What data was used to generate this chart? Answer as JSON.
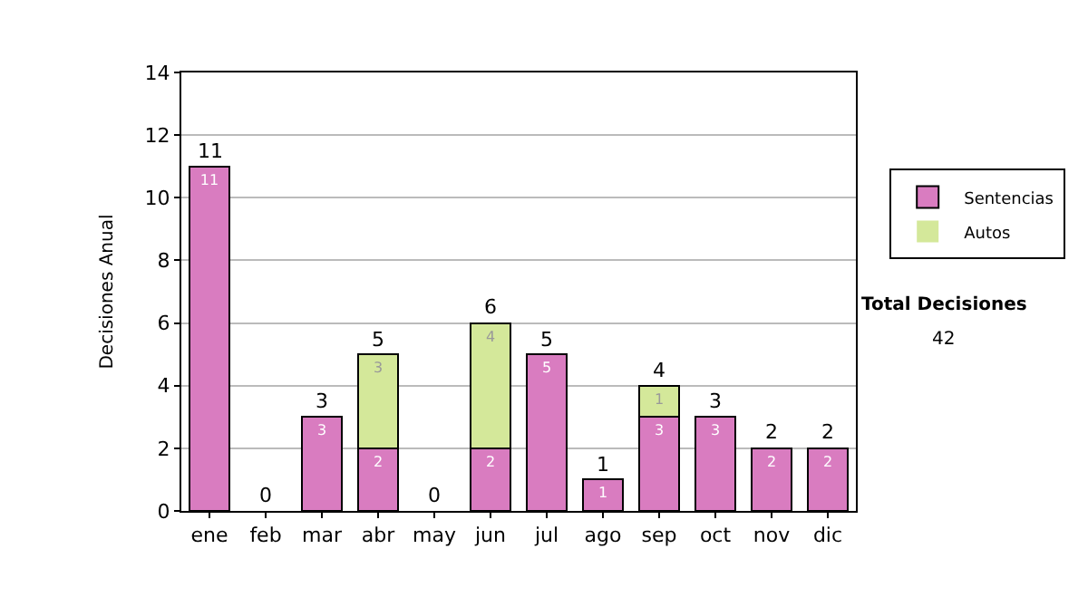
{
  "chart_data": {
    "type": "bar",
    "ylabel": "Decisiones Anual",
    "categories": [
      "ene",
      "feb",
      "mar",
      "abr",
      "may",
      "jun",
      "jul",
      "ago",
      "sep",
      "oct",
      "nov",
      "dic"
    ],
    "stacked": true,
    "ylim": [
      0,
      14
    ],
    "yticks": [
      0,
      2,
      4,
      6,
      8,
      10,
      12,
      14
    ],
    "grid": "y",
    "legend": "right",
    "series": [
      {
        "name": "Sentencias",
        "color": "#d97cc0",
        "values": [
          11,
          0,
          3,
          2,
          0,
          2,
          5,
          1,
          3,
          3,
          2,
          2
        ],
        "value_labels": [
          "11",
          null,
          "3",
          "2",
          null,
          "2",
          "5",
          "1",
          "3",
          "3",
          "2",
          "2"
        ]
      },
      {
        "name": "Autos",
        "color": "#d4e89a",
        "values": [
          0,
          0,
          0,
          3,
          0,
          4,
          0,
          0,
          1,
          0,
          0,
          0
        ],
        "value_labels": [
          null,
          null,
          null,
          "3",
          null,
          "4",
          null,
          null,
          "1",
          null,
          null,
          null
        ]
      }
    ],
    "totals": [
      "11",
      "0",
      "3",
      "5",
      "0",
      "6",
      "5",
      "1",
      "4",
      "3",
      "2",
      "2"
    ],
    "annotations": [
      "Total Decisiones",
      "42"
    ]
  }
}
